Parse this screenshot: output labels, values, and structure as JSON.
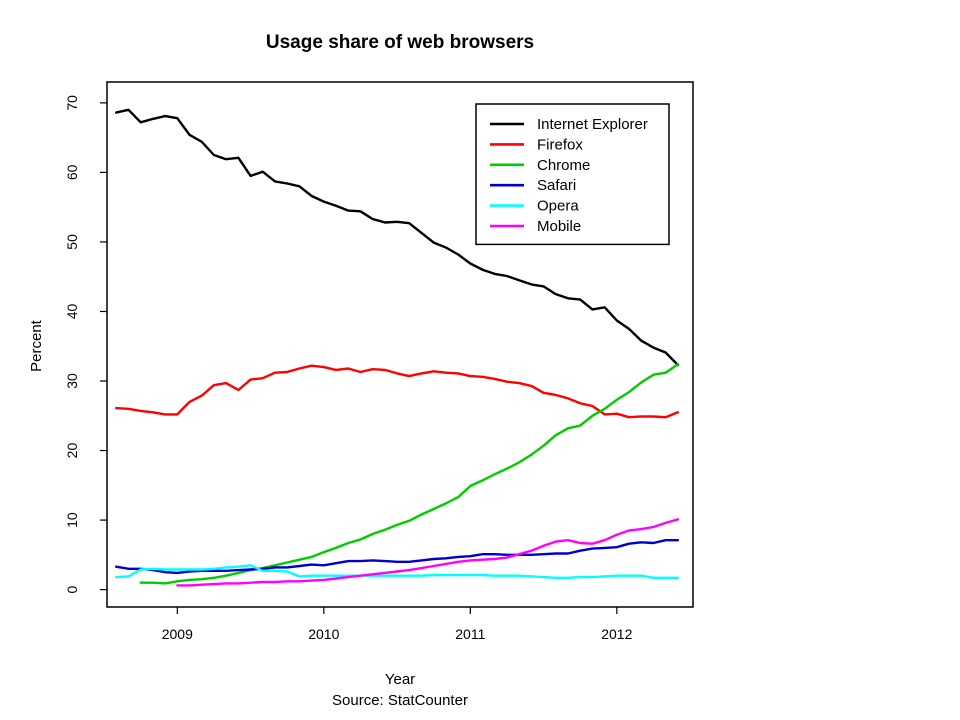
{
  "chart_data": {
    "type": "line",
    "title": "Usage share of web browsers",
    "xlabel": "Year",
    "ylabel": "Percent",
    "source": "Source: StatCounter",
    "xlim": [
      2008.52,
      2012.52
    ],
    "ylim": [
      -2.5,
      73
    ],
    "x_ticks": [
      2009,
      2010,
      2011,
      2012
    ],
    "y_ticks": [
      0,
      10,
      20,
      30,
      40,
      50,
      60,
      70
    ],
    "grid": false,
    "legend_position": "top-right",
    "series": [
      {
        "name": "Internet Explorer",
        "color": "#000000",
        "x": [
          2008.583,
          2008.667,
          2008.75,
          2008.833,
          2008.917,
          2009.0,
          2009.083,
          2009.167,
          2009.25,
          2009.333,
          2009.417,
          2009.5,
          2009.583,
          2009.667,
          2009.75,
          2009.833,
          2009.917,
          2010.0,
          2010.083,
          2010.167,
          2010.25,
          2010.333,
          2010.417,
          2010.5,
          2010.583,
          2010.667,
          2010.75,
          2010.833,
          2010.917,
          2011.0,
          2011.083,
          2011.167,
          2011.25,
          2011.333,
          2011.417,
          2011.5,
          2011.583,
          2011.667,
          2011.75,
          2011.833,
          2011.917,
          2012.0,
          2012.083,
          2012.167,
          2012.25,
          2012.333,
          2012.417
        ],
        "y": [
          68.6,
          69.0,
          67.2,
          67.7,
          68.1,
          67.8,
          65.4,
          64.4,
          62.5,
          61.9,
          62.1,
          59.5,
          60.1,
          58.7,
          58.4,
          58.0,
          56.6,
          55.8,
          55.2,
          54.5,
          54.4,
          53.3,
          52.8,
          52.9,
          52.7,
          51.3,
          49.9,
          49.2,
          48.2,
          46.9,
          46.0,
          45.4,
          45.1,
          44.5,
          43.9,
          43.6,
          42.5,
          41.9,
          41.7,
          40.3,
          40.6,
          38.7,
          37.5,
          35.8,
          34.8,
          34.1,
          32.3
        ]
      },
      {
        "name": "Firefox",
        "color": "#ff0000",
        "x": [
          2008.583,
          2008.667,
          2008.75,
          2008.833,
          2008.917,
          2009.0,
          2009.083,
          2009.167,
          2009.25,
          2009.333,
          2009.417,
          2009.5,
          2009.583,
          2009.667,
          2009.75,
          2009.833,
          2009.917,
          2010.0,
          2010.083,
          2010.167,
          2010.25,
          2010.333,
          2010.417,
          2010.5,
          2010.583,
          2010.667,
          2010.75,
          2010.833,
          2010.917,
          2011.0,
          2011.083,
          2011.167,
          2011.25,
          2011.333,
          2011.417,
          2011.5,
          2011.583,
          2011.667,
          2011.75,
          2011.833,
          2011.917,
          2012.0,
          2012.083,
          2012.167,
          2012.25,
          2012.333,
          2012.417
        ],
        "y": [
          26.1,
          26.0,
          25.7,
          25.5,
          25.2,
          25.2,
          27.0,
          27.9,
          29.4,
          29.7,
          28.7,
          30.2,
          30.4,
          31.2,
          31.3,
          31.8,
          32.2,
          32.0,
          31.6,
          31.8,
          31.3,
          31.7,
          31.6,
          31.1,
          30.7,
          31.1,
          31.4,
          31.2,
          31.1,
          30.7,
          30.6,
          30.3,
          29.9,
          29.7,
          29.3,
          28.3,
          28.0,
          27.5,
          26.8,
          26.4,
          25.2,
          25.3,
          24.8,
          24.9,
          24.9,
          24.8,
          25.5
        ]
      },
      {
        "name": "Chrome",
        "color": "#00cc00",
        "x": [
          2008.75,
          2008.833,
          2008.917,
          2009.0,
          2009.083,
          2009.167,
          2009.25,
          2009.333,
          2009.417,
          2009.5,
          2009.583,
          2009.667,
          2009.75,
          2009.833,
          2009.917,
          2010.0,
          2010.083,
          2010.167,
          2010.25,
          2010.333,
          2010.417,
          2010.5,
          2010.583,
          2010.667,
          2010.75,
          2010.833,
          2010.917,
          2011.0,
          2011.083,
          2011.167,
          2011.25,
          2011.333,
          2011.417,
          2011.5,
          2011.583,
          2011.667,
          2011.75,
          2011.833,
          2011.917,
          2012.0,
          2012.083,
          2012.167,
          2012.25,
          2012.333,
          2012.417
        ],
        "y": [
          1.0,
          1.0,
          0.9,
          1.2,
          1.4,
          1.5,
          1.7,
          2.0,
          2.4,
          2.8,
          3.1,
          3.5,
          3.9,
          4.3,
          4.7,
          5.4,
          6.0,
          6.7,
          7.2,
          8.0,
          8.6,
          9.3,
          9.9,
          10.8,
          11.6,
          12.4,
          13.3,
          14.9,
          15.7,
          16.6,
          17.4,
          18.3,
          19.4,
          20.7,
          22.2,
          23.2,
          23.6,
          25.0,
          26.0,
          27.3,
          28.4,
          29.8,
          30.9,
          31.2,
          32.4
        ]
      },
      {
        "name": "Safari",
        "color": "#0000cc",
        "x": [
          2008.583,
          2008.667,
          2008.75,
          2008.833,
          2008.917,
          2009.0,
          2009.083,
          2009.167,
          2009.25,
          2009.333,
          2009.417,
          2009.5,
          2009.583,
          2009.667,
          2009.75,
          2009.833,
          2009.917,
          2010.0,
          2010.083,
          2010.167,
          2010.25,
          2010.333,
          2010.417,
          2010.5,
          2010.583,
          2010.667,
          2010.75,
          2010.833,
          2010.917,
          2011.0,
          2011.083,
          2011.167,
          2011.25,
          2011.333,
          2011.417,
          2011.5,
          2011.583,
          2011.667,
          2011.75,
          2011.833,
          2011.917,
          2012.0,
          2012.083,
          2012.167,
          2012.25,
          2012.333,
          2012.417
        ],
        "y": [
          3.3,
          3.0,
          3.0,
          2.8,
          2.5,
          2.4,
          2.6,
          2.7,
          2.7,
          2.7,
          2.8,
          2.9,
          3.0,
          3.2,
          3.2,
          3.4,
          3.6,
          3.5,
          3.8,
          4.1,
          4.1,
          4.2,
          4.1,
          4.0,
          4.0,
          4.2,
          4.4,
          4.5,
          4.7,
          4.8,
          5.1,
          5.1,
          5.0,
          5.0,
          5.0,
          5.1,
          5.2,
          5.2,
          5.6,
          5.9,
          6.0,
          6.1,
          6.6,
          6.8,
          6.7,
          7.1,
          7.1
        ]
      },
      {
        "name": "Opera",
        "color": "#00ffff",
        "x": [
          2008.583,
          2008.667,
          2008.75,
          2008.833,
          2008.917,
          2009.0,
          2009.083,
          2009.167,
          2009.25,
          2009.333,
          2009.417,
          2009.5,
          2009.583,
          2009.667,
          2009.75,
          2009.833,
          2009.917,
          2010.0,
          2010.083,
          2010.167,
          2010.25,
          2010.333,
          2010.417,
          2010.5,
          2010.583,
          2010.667,
          2010.75,
          2010.833,
          2010.917,
          2011.0,
          2011.083,
          2011.167,
          2011.25,
          2011.333,
          2011.417,
          2011.5,
          2011.583,
          2011.667,
          2011.75,
          2011.833,
          2011.917,
          2012.0,
          2012.083,
          2012.167,
          2012.25,
          2012.333,
          2012.417
        ],
        "y": [
          1.8,
          1.9,
          2.9,
          3.0,
          2.9,
          2.9,
          2.9,
          2.9,
          3.0,
          3.2,
          3.3,
          3.5,
          2.7,
          2.7,
          2.6,
          1.9,
          2.0,
          2.0,
          2.0,
          2.0,
          2.0,
          2.0,
          2.0,
          2.0,
          2.0,
          2.0,
          2.1,
          2.1,
          2.1,
          2.1,
          2.1,
          2.0,
          2.0,
          2.0,
          1.9,
          1.8,
          1.7,
          1.7,
          1.8,
          1.8,
          1.9,
          2.0,
          2.0,
          2.0,
          1.7,
          1.7,
          1.7
        ]
      },
      {
        "name": "Mobile",
        "color": "#ff00ff",
        "x": [
          2009.0,
          2009.083,
          2009.167,
          2009.25,
          2009.333,
          2009.417,
          2009.5,
          2009.583,
          2009.667,
          2009.75,
          2009.833,
          2009.917,
          2010.0,
          2010.083,
          2010.167,
          2010.25,
          2010.333,
          2010.417,
          2010.5,
          2010.583,
          2010.667,
          2010.75,
          2010.833,
          2010.917,
          2011.0,
          2011.083,
          2011.167,
          2011.25,
          2011.333,
          2011.417,
          2011.5,
          2011.583,
          2011.667,
          2011.75,
          2011.833,
          2011.917,
          2012.0,
          2012.083,
          2012.167,
          2012.25,
          2012.333,
          2012.417
        ],
        "y": [
          0.6,
          0.6,
          0.7,
          0.8,
          0.9,
          0.9,
          1.0,
          1.1,
          1.1,
          1.2,
          1.2,
          1.3,
          1.4,
          1.6,
          1.8,
          2.0,
          2.2,
          2.4,
          2.6,
          2.8,
          3.1,
          3.4,
          3.7,
          4.0,
          4.2,
          4.3,
          4.4,
          4.6,
          5.1,
          5.6,
          6.3,
          6.9,
          7.1,
          6.7,
          6.6,
          7.1,
          7.9,
          8.5,
          8.7,
          9.0,
          9.6,
          10.1
        ]
      }
    ]
  }
}
